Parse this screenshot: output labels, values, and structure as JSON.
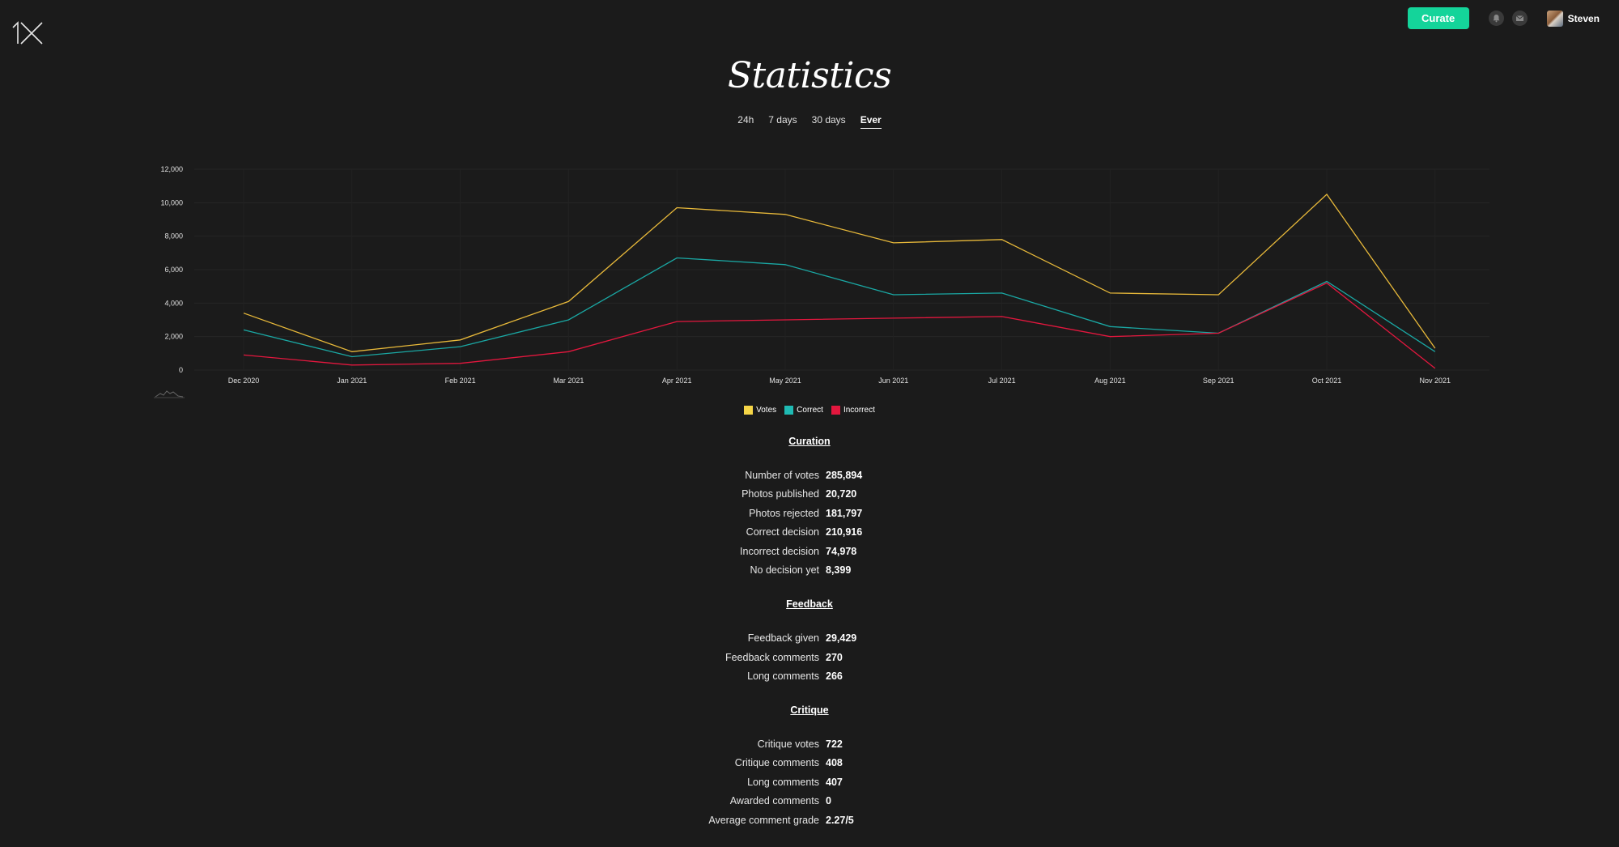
{
  "header": {
    "logo_icon": "1x-logo-icon",
    "curate_label": "Curate",
    "bell_icon": "bell-icon",
    "mail_icon": "mail-icon",
    "user_name": "Steven"
  },
  "page": {
    "title": "Statistics"
  },
  "period_tabs": [
    {
      "label": "24h",
      "active": false
    },
    {
      "label": "7 days",
      "active": false
    },
    {
      "label": "30 days",
      "active": false
    },
    {
      "label": "Ever",
      "active": true
    }
  ],
  "chart_data": {
    "type": "line",
    "x": [
      "Dec 2020",
      "Jan 2021",
      "Feb 2021",
      "Mar 2021",
      "Apr 2021",
      "May 2021",
      "Jun 2021",
      "Jul 2021",
      "Aug 2021",
      "Sep 2021",
      "Oct 2021",
      "Nov 2021"
    ],
    "y_ticks": [
      "0",
      "2,000",
      "4,000",
      "6,000",
      "8,000",
      "10,000",
      "12,000"
    ],
    "ylim": [
      0,
      12000
    ],
    "grid": true,
    "legend_position": "bottom",
    "series": [
      {
        "name": "Votes",
        "color": "#e8b93a",
        "values": [
          3400,
          1100,
          1800,
          4100,
          9700,
          9300,
          7600,
          7800,
          4600,
          4500,
          10500,
          1300
        ]
      },
      {
        "name": "Correct",
        "color": "#1aa8a4",
        "values": [
          2400,
          800,
          1400,
          3000,
          6700,
          6300,
          4500,
          4600,
          2600,
          2200,
          5300,
          1100
        ]
      },
      {
        "name": "Incorrect",
        "color": "#e3173e",
        "values": [
          900,
          300,
          400,
          1100,
          2900,
          3000,
          3100,
          3200,
          2000,
          2200,
          5200,
          100
        ]
      }
    ],
    "legend_colors": {
      "Votes": "#f5d547",
      "Correct": "#1fbab3",
      "Incorrect": "#e3173e"
    }
  },
  "sections": [
    {
      "title": "Curation",
      "rows": [
        {
          "label": "Number of votes",
          "value": "285,894"
        },
        {
          "label": "Photos published",
          "value": "20,720"
        },
        {
          "label": "Photos rejected",
          "value": "181,797"
        },
        {
          "label": "Correct decision",
          "value": "210,916"
        },
        {
          "label": "Incorrect decision",
          "value": "74,978"
        },
        {
          "label": "No decision yet",
          "value": "8,399"
        }
      ]
    },
    {
      "title": "Feedback",
      "rows": [
        {
          "label": "Feedback given",
          "value": "29,429"
        },
        {
          "label": "Feedback comments",
          "value": "270"
        },
        {
          "label": "Long comments",
          "value": "266"
        }
      ]
    },
    {
      "title": "Critique",
      "rows": [
        {
          "label": "Critique votes",
          "value": "722"
        },
        {
          "label": "Critique comments",
          "value": "408"
        },
        {
          "label": "Long comments",
          "value": "407"
        },
        {
          "label": "Awarded comments",
          "value": "0"
        },
        {
          "label": "Average comment grade",
          "value": "2.27/5"
        }
      ]
    }
  ]
}
